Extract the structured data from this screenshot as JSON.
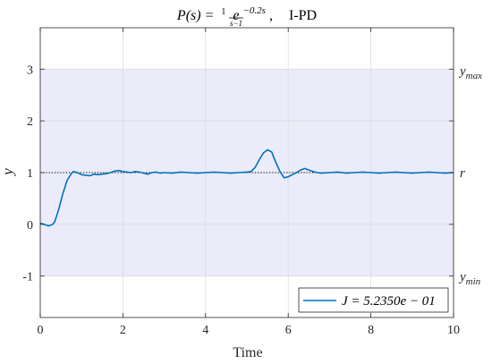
{
  "chart_data": {
    "type": "line",
    "title": {
      "lhs": "P(s) =",
      "frac_num": "1",
      "frac_den": "s−1",
      "exp_base": "e",
      "exp_sup": "−0.2s",
      "sep": ",",
      "controller": "I-PD"
    },
    "xlabel": "Time",
    "ylabel": "y",
    "xlim": [
      0,
      10
    ],
    "ylim": [
      -1.8,
      3.8
    ],
    "xticks": [
      0,
      2,
      4,
      6,
      8,
      10
    ],
    "xtick_labels": [
      "0",
      "2",
      "4",
      "6",
      "8",
      "10"
    ],
    "yticks": [
      -1,
      0,
      1,
      2,
      3
    ],
    "ytick_labels": [
      "-1",
      "0",
      "1",
      "2",
      "3"
    ],
    "grid": true,
    "shaded_band": {
      "y_min": -1,
      "y_max": 3,
      "color": "#ebebfa"
    },
    "reference": {
      "value": 1,
      "style": "dotted",
      "color": "#000000"
    },
    "right_labels": {
      "y_max": {
        "base": "y",
        "sub": "max",
        "value": 3
      },
      "r": {
        "text": "r",
        "value": 1
      },
      "y_min": {
        "base": "y",
        "sub": "min",
        "value": -1
      }
    },
    "series": [
      {
        "name": "J = 5.2350e − 01",
        "color": "#0072bd",
        "x": [
          0,
          0.1,
          0.2,
          0.3,
          0.35,
          0.45,
          0.55,
          0.65,
          0.75,
          0.8,
          0.9,
          1.0,
          1.1,
          1.2,
          1.3,
          1.4,
          1.5,
          1.6,
          1.7,
          1.8,
          1.9,
          2.0,
          2.1,
          2.2,
          2.3,
          2.4,
          2.5,
          2.6,
          2.7,
          2.8,
          2.9,
          3.0,
          3.2,
          3.4,
          3.6,
          3.8,
          4.0,
          4.2,
          4.4,
          4.6,
          4.8,
          5.0,
          5.1,
          5.2,
          5.3,
          5.4,
          5.5,
          5.6,
          5.7,
          5.8,
          5.9,
          6.0,
          6.1,
          6.2,
          6.3,
          6.4,
          6.5,
          6.6,
          6.7,
          6.8,
          7.0,
          7.2,
          7.4,
          7.6,
          7.8,
          8.0,
          8.2,
          8.4,
          8.6,
          8.8,
          9.0,
          9.2,
          9.4,
          9.6,
          9.8,
          10.0
        ],
        "y": [
          0.02,
          0.0,
          -0.03,
          0.0,
          0.05,
          0.3,
          0.6,
          0.85,
          0.98,
          1.02,
          1.0,
          0.96,
          0.95,
          0.94,
          0.97,
          0.96,
          0.97,
          0.98,
          1.0,
          1.03,
          1.04,
          1.02,
          1.01,
          1.0,
          1.02,
          1.01,
          0.99,
          0.97,
          1.0,
          1.01,
          0.99,
          1.0,
          0.99,
          1.01,
          1.0,
          0.99,
          1.0,
          1.01,
          1.0,
          0.99,
          1.0,
          1.01,
          1.02,
          1.1,
          1.25,
          1.38,
          1.44,
          1.4,
          1.2,
          1.02,
          0.9,
          0.92,
          0.96,
          1.0,
          1.05,
          1.08,
          1.05,
          1.02,
          1.0,
          0.99,
          1.0,
          1.01,
          0.99,
          1.0,
          1.01,
          1.0,
          0.99,
          1.0,
          1.01,
          1.0,
          0.99,
          1.0,
          1.01,
          1.0,
          0.99,
          1.0
        ]
      }
    ],
    "legend": {
      "position": "bottom-right",
      "label": "J = 5.2350e − 01"
    }
  }
}
